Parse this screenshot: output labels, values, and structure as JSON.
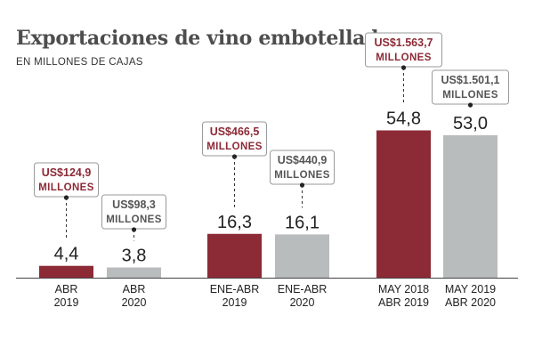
{
  "title": "Exportaciones de vino embotellado",
  "subtitle": "EN MILLONES DE CAJAS",
  "colors": {
    "series_2019": "#8c2a36",
    "series_2020": "#b9bcbc",
    "text": "#222222",
    "axis": "#444444"
  },
  "chart_data": {
    "type": "bar",
    "title": "Exportaciones de vino embotellado",
    "subtitle": "EN MILLONES DE CAJAS",
    "ylim": [
      0,
      60
    ],
    "groups": [
      {
        "bars": [
          {
            "label": [
              "ABR",
              "2019"
            ],
            "value": 4.4,
            "value_label": "4,4",
            "usd": [
              "US$124,9",
              "MILLONES"
            ],
            "series": "2019"
          },
          {
            "label": [
              "ABR",
              "2020"
            ],
            "value": 3.8,
            "value_label": "3,8",
            "usd": [
              "US$98,3",
              "MILLONES"
            ],
            "series": "2020"
          }
        ]
      },
      {
        "bars": [
          {
            "label": [
              "ENE-ABR",
              "2019"
            ],
            "value": 16.3,
            "value_label": "16,3",
            "usd": [
              "US$466,5",
              "MILLONES"
            ],
            "series": "2019"
          },
          {
            "label": [
              "ENE-ABR",
              "2020"
            ],
            "value": 16.1,
            "value_label": "16,1",
            "usd": [
              "US$440,9",
              "MILLONES"
            ],
            "series": "2020"
          }
        ]
      },
      {
        "bars": [
          {
            "label": [
              "MAY 2018",
              "ABR 2019"
            ],
            "value": 54.8,
            "value_label": "54,8",
            "usd": [
              "US$1.563,7",
              "MILLONES"
            ],
            "series": "2019"
          },
          {
            "label": [
              "MAY 2019",
              "ABR 2020"
            ],
            "value": 53.0,
            "value_label": "53,0",
            "usd": [
              "US$1.501,1",
              "MILLONES"
            ],
            "series": "2020"
          }
        ]
      }
    ]
  }
}
